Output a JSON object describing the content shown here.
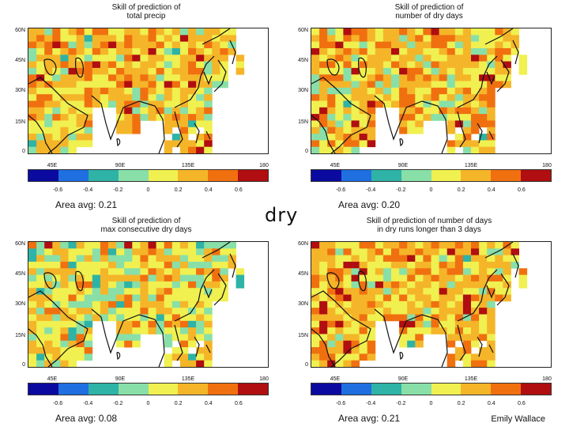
{
  "colorscale": [
    "#0a0aa0",
    "#1f6fe0",
    "#2eb3a6",
    "#88e0a8",
    "#f0f050",
    "#f5b529",
    "#f07010",
    "#b00e10"
  ],
  "colorbar_ticks": [
    "-0.6",
    "-0.4",
    "-0.2",
    "0",
    "0.2",
    "0.4",
    "0.6"
  ],
  "center_word": "dry",
  "author": "Emily Wallace",
  "chart_data": [
    {
      "type": "heatmap",
      "title": [
        "Skill of prediction of",
        "total precip"
      ],
      "area_avg": "Area avg: 0.21",
      "mean_skill": 0.21,
      "xticks": [
        "45E",
        "90E",
        "135E",
        "180"
      ],
      "yticks": [
        "60N",
        "45N",
        "30N",
        "15N",
        "0"
      ],
      "xlim": [
        25,
        180
      ],
      "ylim": [
        0,
        60
      ],
      "colorbar_range": [
        -0.8,
        0.8
      ]
    },
    {
      "type": "heatmap",
      "title": [
        "Skill of prediction of",
        "number of dry days"
      ],
      "area_avg": "Area avg: 0.20",
      "mean_skill": 0.2,
      "xticks": [
        "45E",
        "90E",
        "135E",
        "180"
      ],
      "yticks": [
        "60N",
        "45N",
        "30N",
        "15N",
        "0"
      ],
      "xlim": [
        25,
        180
      ],
      "ylim": [
        0,
        60
      ],
      "colorbar_range": [
        -0.8,
        0.8
      ]
    },
    {
      "type": "heatmap",
      "title": [
        "Skill of prediction of",
        "max consecutive dry days"
      ],
      "area_avg": "Area avg: 0.08",
      "mean_skill": 0.08,
      "xticks": [
        "45E",
        "90E",
        "135E",
        "180"
      ],
      "yticks": [
        "60N",
        "45N",
        "30N",
        "15N",
        "0"
      ],
      "xlim": [
        25,
        180
      ],
      "ylim": [
        0,
        60
      ],
      "colorbar_range": [
        -0.8,
        0.8
      ]
    },
    {
      "type": "heatmap",
      "title": [
        "Skill of prediction of number of days",
        "in dry runs longer than 3 days"
      ],
      "area_avg": "Area avg: 0.21",
      "mean_skill": 0.21,
      "xticks": [
        "45E",
        "90E",
        "135E",
        "180"
      ],
      "yticks": [
        "60N",
        "45N",
        "30N",
        "15N",
        "0"
      ],
      "xlim": [
        25,
        180
      ],
      "ylim": [
        0,
        60
      ],
      "colorbar_range": [
        -0.8,
        0.8
      ]
    }
  ]
}
